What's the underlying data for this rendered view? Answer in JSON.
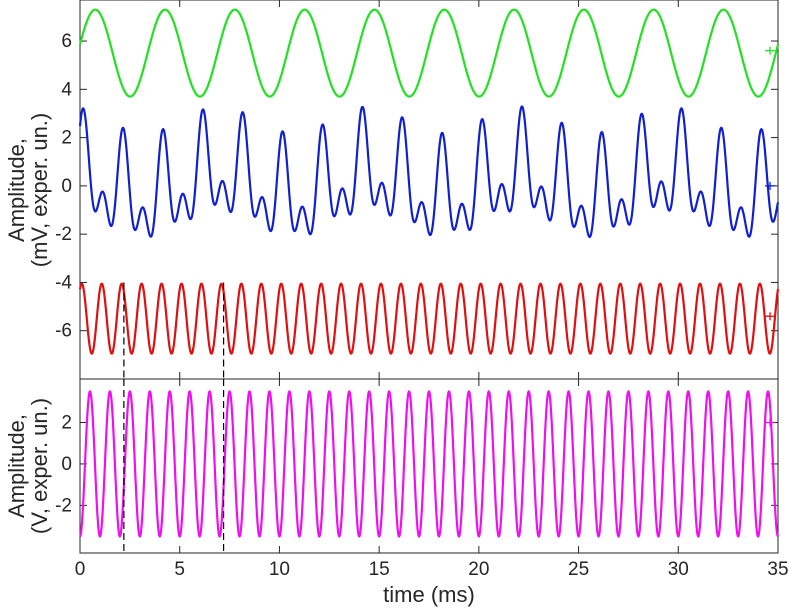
{
  "chart_data": [
    {
      "type": "line",
      "panel": "top",
      "ylabel": [
        "Amplitude,",
        "(mV, exper. un.)"
      ],
      "xlim": [
        0,
        35
      ],
      "ylim": [
        -8,
        7.7
      ],
      "y_ticks": [
        -6,
        -4,
        -2,
        0,
        2,
        4,
        6
      ],
      "y_tick_labels": [
        "-6",
        "-4",
        "-2",
        "0",
        "2",
        "4",
        "6"
      ],
      "x_ticks": [
        0,
        5,
        10,
        15,
        20,
        25,
        30,
        35
      ],
      "grid": false,
      "legend": "none",
      "series": [
        {
          "color": "#22e022",
          "function": "sine",
          "offset": 5.5,
          "amplitude": 1.8,
          "frequency_khz": 0.2857,
          "phase_rad": 0.2,
          "x_range": [
            0,
            35
          ],
          "error_bar": {
            "x": 34.6,
            "y": 5.6,
            "half_width": 0.25
          }
        },
        {
          "color": "#1020d0",
          "function": "sum_of_sines",
          "offset": 0,
          "components": [
            {
              "amplitude": 1.55,
              "frequency_khz": 0.5,
              "phase_rad": 1.0
            },
            {
              "amplitude": 1.2,
              "frequency_khz": 1.0,
              "phase_rad": 0.6
            },
            {
              "amplitude": 0.55,
              "frequency_khz": 0.1333,
              "phase_rad": 2.0
            }
          ],
          "x_range": [
            0,
            35
          ],
          "error_bar": {
            "x": 34.6,
            "y": 0.0,
            "half_width": 0.25
          }
        },
        {
          "color": "#e01010",
          "function": "sine",
          "offset": -5.5,
          "amplitude": 1.45,
          "frequency_khz": 1.0,
          "phase_rad": 1.0,
          "x_range": [
            0,
            35
          ],
          "error_bar": {
            "x": 34.6,
            "y": -5.4,
            "half_width": 0.25
          }
        }
      ]
    },
    {
      "type": "line",
      "panel": "bottom",
      "ylabel": [
        "Amplitude,",
        "(V, exper. un.)"
      ],
      "xlabel": "time (ms)",
      "xlim": [
        0,
        35
      ],
      "ylim": [
        -4.3,
        4.1
      ],
      "y_ticks": [
        -2,
        0,
        2
      ],
      "y_tick_labels": [
        "-2",
        "0",
        "2"
      ],
      "x_ticks": [
        0,
        5,
        10,
        15,
        20,
        25,
        30,
        35
      ],
      "x_tick_labels": [
        "0",
        "5",
        "10",
        "15",
        "20",
        "25",
        "30",
        "35"
      ],
      "grid": false,
      "legend": "none",
      "series": [
        {
          "color": "#ee10ee",
          "function": "sine",
          "offset": 0,
          "amplitude": 3.5,
          "frequency_khz": 1.0,
          "phase_rad": -1.5708,
          "x_range": [
            0,
            35
          ],
          "error_bar": {
            "x": 34.6,
            "y": 2.0,
            "half_width": 0.25
          }
        }
      ]
    }
  ],
  "markers": {
    "type": "vertical-dashed",
    "x": [
      2.2,
      7.2
    ],
    "color": "#000000"
  }
}
